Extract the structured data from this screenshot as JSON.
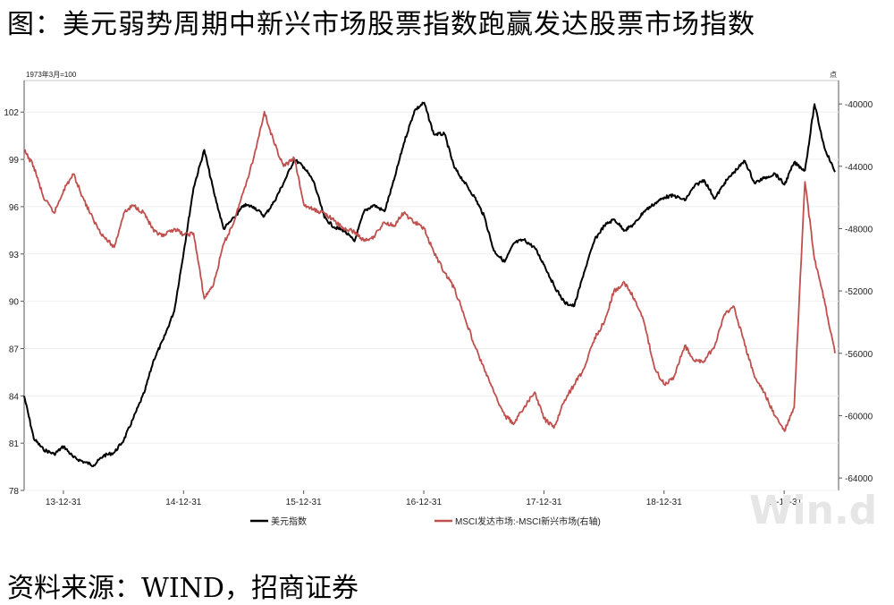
{
  "title": "图：美元弱势周期中新兴市场股票指数跑赢发达股票市场指数",
  "source": "资料来源：WIND，招商证券",
  "watermark": "Win.d",
  "chart_data": {
    "type": "line",
    "left_axis_unit": "1973年3月=100",
    "right_axis_unit": "点",
    "x_ticks": [
      "13-12-31",
      "14-12-31",
      "15-12-31",
      "16-12-31",
      "17-12-31",
      "18-12-31",
      "19-12-31"
    ],
    "x_range": [
      2013.67,
      2020.45
    ],
    "ylim_left": [
      78,
      104
    ],
    "yticks_left": [
      78,
      81,
      84,
      87,
      90,
      93,
      96,
      99,
      102
    ],
    "ylim_right": [
      -64800,
      -38500
    ],
    "yticks_right": [
      -64000,
      -60000,
      -56000,
      -52000,
      -48000,
      -44000,
      -40000
    ],
    "legend_placement": "bottom",
    "series": [
      {
        "name": "美元指数",
        "axis": "left",
        "color": "#000000",
        "x": [
          2013.67,
          2013.75,
          2013.83,
          2013.92,
          2014.0,
          2014.08,
          2014.17,
          2014.25,
          2014.33,
          2014.42,
          2014.5,
          2014.58,
          2014.67,
          2014.75,
          2014.83,
          2014.92,
          2015.0,
          2015.08,
          2015.17,
          2015.25,
          2015.33,
          2015.42,
          2015.5,
          2015.58,
          2015.67,
          2015.75,
          2015.83,
          2015.92,
          2016.0,
          2016.08,
          2016.17,
          2016.25,
          2016.33,
          2016.42,
          2016.5,
          2016.58,
          2016.67,
          2016.75,
          2016.83,
          2016.92,
          2017.0,
          2017.08,
          2017.17,
          2017.25,
          2017.33,
          2017.42,
          2017.5,
          2017.58,
          2017.67,
          2017.75,
          2017.83,
          2017.92,
          2018.0,
          2018.08,
          2018.17,
          2018.25,
          2018.33,
          2018.42,
          2018.5,
          2018.58,
          2018.67,
          2018.75,
          2018.83,
          2018.92,
          2019.0,
          2019.08,
          2019.17,
          2019.25,
          2019.33,
          2019.42,
          2019.5,
          2019.58,
          2019.67,
          2019.75,
          2019.83,
          2019.92,
          2020.0,
          2020.08,
          2020.17,
          2020.25,
          2020.33,
          2020.42
        ],
        "values": [
          84,
          81.3,
          80.6,
          80.3,
          80.8,
          80.1,
          79.8,
          79.6,
          80.2,
          80.4,
          81.2,
          82.6,
          84.2,
          86.3,
          87.6,
          89.4,
          93.2,
          97.2,
          99.6,
          96.9,
          94.6,
          95.3,
          96.1,
          96.0,
          95.4,
          96.3,
          97.5,
          99.0,
          98.5,
          97.6,
          95.3,
          94.7,
          94.5,
          93.8,
          95.7,
          96.1,
          95.7,
          97.7,
          100.0,
          102.1,
          102.6,
          100.6,
          100.6,
          98.5,
          97.6,
          96.6,
          95.4,
          93.2,
          92.5,
          93.7,
          93.9,
          93.4,
          92.3,
          91.0,
          89.9,
          89.7,
          91.8,
          93.9,
          94.8,
          95.2,
          94.5,
          94.9,
          95.7,
          96.2,
          96.6,
          96.7,
          96.4,
          97.3,
          97.7,
          96.5,
          97.5,
          98.2,
          98.9,
          97.5,
          97.8,
          98.1,
          97.4,
          98.8,
          98.3,
          102.5,
          99.8,
          98.2
        ]
      },
      {
        "name": "MSCI发达市场:-MSCI新兴市场(右轴)",
        "axis": "right",
        "color": "#c0504d",
        "x": [
          2013.67,
          2013.75,
          2013.83,
          2013.92,
          2014.0,
          2014.08,
          2014.17,
          2014.25,
          2014.33,
          2014.42,
          2014.5,
          2014.58,
          2014.67,
          2014.75,
          2014.83,
          2014.92,
          2015.0,
          2015.08,
          2015.17,
          2015.25,
          2015.33,
          2015.42,
          2015.5,
          2015.58,
          2015.67,
          2015.75,
          2015.83,
          2015.92,
          2016.0,
          2016.08,
          2016.17,
          2016.25,
          2016.33,
          2016.42,
          2016.5,
          2016.58,
          2016.67,
          2016.75,
          2016.83,
          2016.92,
          2017.0,
          2017.08,
          2017.17,
          2017.25,
          2017.33,
          2017.42,
          2017.5,
          2017.58,
          2017.67,
          2017.75,
          2017.83,
          2017.92,
          2018.0,
          2018.08,
          2018.17,
          2018.25,
          2018.33,
          2018.42,
          2018.5,
          2018.58,
          2018.67,
          2018.75,
          2018.83,
          2018.92,
          2019.0,
          2019.08,
          2019.17,
          2019.25,
          2019.33,
          2019.42,
          2019.5,
          2019.58,
          2019.67,
          2019.75,
          2019.83,
          2019.92,
          2020.0,
          2020.08,
          2020.17,
          2020.25,
          2020.33,
          2020.42
        ],
        "values": [
          -43000,
          -44000,
          -46000,
          -47000,
          -45500,
          -44500,
          -46200,
          -47500,
          -48500,
          -49200,
          -47000,
          -46500,
          -47000,
          -48200,
          -48500,
          -48000,
          -48400,
          -48300,
          -52500,
          -51500,
          -49000,
          -47500,
          -45500,
          -43500,
          -40500,
          -42500,
          -44000,
          -43500,
          -46500,
          -46800,
          -47000,
          -47500,
          -48000,
          -48200,
          -48800,
          -48500,
          -47600,
          -47800,
          -47000,
          -47600,
          -48000,
          -49500,
          -50800,
          -51800,
          -53500,
          -55500,
          -57000,
          -58500,
          -60000,
          -60500,
          -59500,
          -58500,
          -60200,
          -60800,
          -59000,
          -58000,
          -57000,
          -55000,
          -54000,
          -52000,
          -51500,
          -52500,
          -54000,
          -57000,
          -58000,
          -57500,
          -55500,
          -56500,
          -56500,
          -55500,
          -53500,
          -53000,
          -55500,
          -57500,
          -58500,
          -60000,
          -61000,
          -59500,
          -45000,
          -50000,
          -52500,
          -56000
        ]
      }
    ]
  }
}
